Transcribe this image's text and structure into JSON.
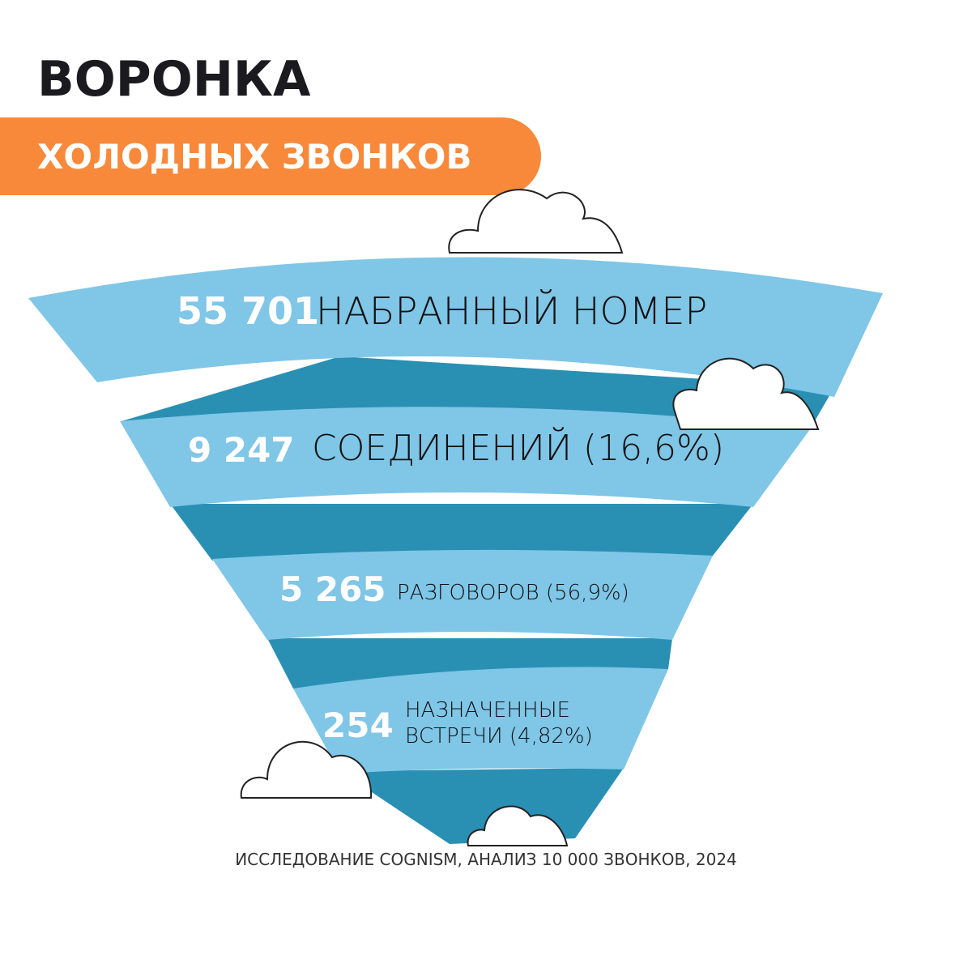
{
  "header": {
    "title": "ВОРОНКА",
    "subtitle": "ХОЛОДНЫХ ЗВОНКОВ"
  },
  "stages": [
    {
      "value": "55 701",
      "label": [
        "НАБРАННЫЙ НОМЕР"
      ]
    },
    {
      "value": "9 247",
      "label": [
        "СОЕДИНЕНИЙ (16,6%)"
      ]
    },
    {
      "value": "5 265",
      "label": [
        "РАЗГОВОРОВ (56,9%)"
      ]
    },
    {
      "value": "254",
      "label": [
        "НАЗНАЧЕННЫЕ",
        "ВСТРЕЧИ (4,82%)"
      ]
    }
  ],
  "footer": "ИССЛЕДОВАНИЕ COGNISM, АНАЛИЗ 10 000 ЗВОНКОВ, 2024"
}
